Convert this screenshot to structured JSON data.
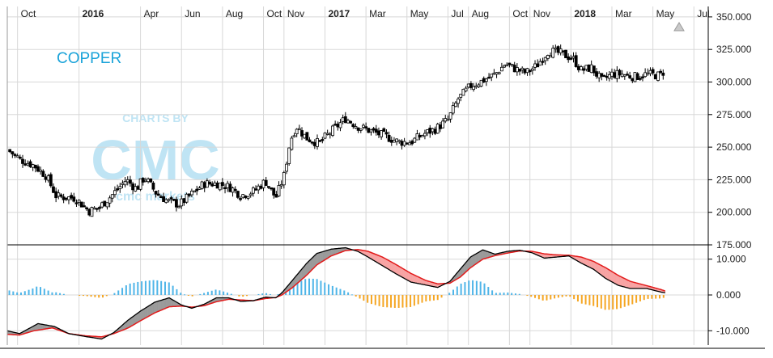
{
  "title": "COPPER",
  "watermark": {
    "line1": "CHARTS BY",
    "line2": "CMC",
    "line3": "cmc markets"
  },
  "colors": {
    "candle": "#000000",
    "macd_line": "#000000",
    "signal_line": "#e21b1b",
    "fill_bull": "#9a9a9a",
    "fill_bear": "#f7a3a3",
    "hist_pos": "#4fb5e8",
    "hist_neg": "#f5a623",
    "title": "#1aa3d9"
  },
  "chart_data": [
    {
      "type": "candlestick",
      "title": "COPPER",
      "x_ticks": [
        {
          "label": "Oct",
          "t": 0.5,
          "bold": false
        },
        {
          "label": "2016",
          "t": 3.5,
          "bold": true
        },
        {
          "label": "Apr",
          "t": 6.5,
          "bold": false
        },
        {
          "label": "Jun",
          "t": 8.5,
          "bold": false
        },
        {
          "label": "Aug",
          "t": 10.5,
          "bold": false
        },
        {
          "label": "Oct",
          "t": 12.5,
          "bold": false
        },
        {
          "label": "Nov",
          "t": 13.5,
          "bold": false
        },
        {
          "label": "2017",
          "t": 15.5,
          "bold": true
        },
        {
          "label": "Mar",
          "t": 17.5,
          "bold": false
        },
        {
          "label": "May",
          "t": 19.5,
          "bold": false
        },
        {
          "label": "Jul",
          "t": 21.5,
          "bold": false
        },
        {
          "label": "Aug",
          "t": 22.5,
          "bold": false
        },
        {
          "label": "Oct",
          "t": 24.5,
          "bold": false
        },
        {
          "label": "Nov",
          "t": 25.5,
          "bold": false
        },
        {
          "label": "2018",
          "t": 27.5,
          "bold": true
        },
        {
          "label": "Mar",
          "t": 29.5,
          "bold": false
        },
        {
          "label": "May",
          "t": 31.5,
          "bold": false
        },
        {
          "label": "Jul",
          "t": 33.5,
          "bold": false
        }
      ],
      "y_ticks": [
        "350.000",
        "325.000",
        "300.000",
        "275.000",
        "250.000",
        "225.000",
        "200.000",
        "175.000"
      ],
      "ylim": [
        175,
        358
      ],
      "xlim": [
        0,
        34.2
      ],
      "price_path": [
        [
          0.0,
          248
        ],
        [
          0.7,
          240
        ],
        [
          1.3,
          236
        ],
        [
          1.9,
          228
        ],
        [
          2.4,
          212
        ],
        [
          3.3,
          211
        ],
        [
          4.0,
          201
        ],
        [
          4.5,
          204
        ],
        [
          5.1,
          213
        ],
        [
          5.8,
          225
        ],
        [
          6.3,
          218
        ],
        [
          6.7,
          227
        ],
        [
          7.3,
          214
        ],
        [
          7.9,
          208
        ],
        [
          8.4,
          206
        ],
        [
          9.0,
          214
        ],
        [
          9.6,
          222
        ],
        [
          10.3,
          222
        ],
        [
          10.9,
          219
        ],
        [
          11.4,
          213
        ],
        [
          12.0,
          216
        ],
        [
          12.6,
          224
        ],
        [
          13.1,
          211
        ],
        [
          13.5,
          228
        ],
        [
          13.8,
          255
        ],
        [
          14.1,
          266
        ],
        [
          14.6,
          257
        ],
        [
          15.2,
          253
        ],
        [
          15.8,
          262
        ],
        [
          16.5,
          272
        ],
        [
          17.1,
          266
        ],
        [
          17.8,
          262
        ],
        [
          18.5,
          258
        ],
        [
          19.1,
          254
        ],
        [
          19.7,
          254
        ],
        [
          20.3,
          260
        ],
        [
          20.9,
          264
        ],
        [
          21.5,
          271
        ],
        [
          22.0,
          287
        ],
        [
          22.6,
          297
        ],
        [
          23.2,
          301
        ],
        [
          23.8,
          306
        ],
        [
          24.3,
          314
        ],
        [
          24.8,
          310
        ],
        [
          25.3,
          307
        ],
        [
          25.8,
          312
        ],
        [
          26.4,
          324
        ],
        [
          27.0,
          322
        ],
        [
          27.6,
          318
        ],
        [
          28.0,
          309
        ],
        [
          28.5,
          311
        ],
        [
          29.0,
          301
        ],
        [
          29.5,
          306
        ],
        [
          30.0,
          306
        ],
        [
          30.6,
          304
        ],
        [
          31.2,
          306
        ],
        [
          31.8,
          305
        ],
        [
          32.1,
          309
        ]
      ],
      "price_bounds": {
        "min": 195,
        "max": 329
      }
    },
    {
      "type": "macd",
      "y_ticks": [
        "10.000",
        "0.000",
        "-10.000"
      ],
      "ylim": [
        -14,
        14
      ],
      "macd_path": [
        [
          0.0,
          -10
        ],
        [
          0.6,
          -10.8
        ],
        [
          1.5,
          -8
        ],
        [
          2.3,
          -8.8
        ],
        [
          3.0,
          -10.8
        ],
        [
          3.8,
          -11.6
        ],
        [
          4.6,
          -12.3
        ],
        [
          5.2,
          -10.5
        ],
        [
          5.9,
          -7
        ],
        [
          6.5,
          -4.5
        ],
        [
          7.2,
          -2
        ],
        [
          7.9,
          -0.8
        ],
        [
          8.5,
          -2.8
        ],
        [
          9.0,
          -3.7
        ],
        [
          9.6,
          -2.6
        ],
        [
          10.2,
          -0.8
        ],
        [
          10.8,
          -0.8
        ],
        [
          11.4,
          -1.8
        ],
        [
          12.0,
          -1.6
        ],
        [
          12.6,
          -0.6
        ],
        [
          13.1,
          -0.8
        ],
        [
          13.4,
          0.6
        ],
        [
          13.9,
          4
        ],
        [
          14.6,
          8.8
        ],
        [
          15.1,
          11.6
        ],
        [
          15.8,
          12.8
        ],
        [
          16.5,
          13.2
        ],
        [
          17.1,
          12.2
        ],
        [
          17.6,
          10.6
        ],
        [
          18.3,
          8.2
        ],
        [
          19.0,
          5.8
        ],
        [
          19.7,
          3.6
        ],
        [
          20.4,
          2.8
        ],
        [
          21.0,
          2.1
        ],
        [
          21.6,
          3.8
        ],
        [
          22.1,
          7.2
        ],
        [
          22.6,
          10.6
        ],
        [
          23.2,
          12.6
        ],
        [
          23.8,
          11.4
        ],
        [
          24.4,
          12.2
        ],
        [
          25.0,
          12.5
        ],
        [
          25.6,
          11.8
        ],
        [
          26.2,
          10.3
        ],
        [
          26.8,
          10.6
        ],
        [
          27.4,
          10.9
        ],
        [
          28.0,
          8.9
        ],
        [
          28.6,
          7.2
        ],
        [
          29.2,
          4.6
        ],
        [
          29.8,
          2.7
        ],
        [
          30.4,
          1.8
        ],
        [
          31.2,
          1.8
        ],
        [
          31.9,
          0.8
        ],
        [
          32.1,
          0.6
        ]
      ],
      "signal_path": [
        [
          0.0,
          -11
        ],
        [
          0.6,
          -11.2
        ],
        [
          1.3,
          -10
        ],
        [
          2.2,
          -9.2
        ],
        [
          3.0,
          -10.8
        ],
        [
          3.8,
          -11.4
        ],
        [
          4.6,
          -11.7
        ],
        [
          5.2,
          -10.8
        ],
        [
          5.9,
          -9.2
        ],
        [
          6.5,
          -7.2
        ],
        [
          7.2,
          -5
        ],
        [
          7.9,
          -3.3
        ],
        [
          8.5,
          -3.1
        ],
        [
          9.0,
          -3.4
        ],
        [
          9.6,
          -3.0
        ],
        [
          10.2,
          -1.9
        ],
        [
          10.8,
          -1.2
        ],
        [
          11.4,
          -1.4
        ],
        [
          12.0,
          -1.6
        ],
        [
          12.6,
          -1.0
        ],
        [
          13.1,
          -0.7
        ],
        [
          13.4,
          0.0
        ],
        [
          13.9,
          2.0
        ],
        [
          14.6,
          5.5
        ],
        [
          15.1,
          8.4
        ],
        [
          15.8,
          10.9
        ],
        [
          16.5,
          12.4
        ],
        [
          17.1,
          12.7
        ],
        [
          17.6,
          12.2
        ],
        [
          18.3,
          10.6
        ],
        [
          19.0,
          8.4
        ],
        [
          19.7,
          6.0
        ],
        [
          20.4,
          4.1
        ],
        [
          21.0,
          3.1
        ],
        [
          21.6,
          3.3
        ],
        [
          22.1,
          5.0
        ],
        [
          22.6,
          7.6
        ],
        [
          23.2,
          10.0
        ],
        [
          23.8,
          11.0
        ],
        [
          24.4,
          11.7
        ],
        [
          25.0,
          12.3
        ],
        [
          25.6,
          12.2
        ],
        [
          26.2,
          11.5
        ],
        [
          26.8,
          11.2
        ],
        [
          27.4,
          11.1
        ],
        [
          28.0,
          10.6
        ],
        [
          28.6,
          9.4
        ],
        [
          29.2,
          7.6
        ],
        [
          29.8,
          5.5
        ],
        [
          30.4,
          3.8
        ],
        [
          31.2,
          2.6
        ],
        [
          31.9,
          1.5
        ],
        [
          32.1,
          1.1
        ]
      ]
    }
  ]
}
